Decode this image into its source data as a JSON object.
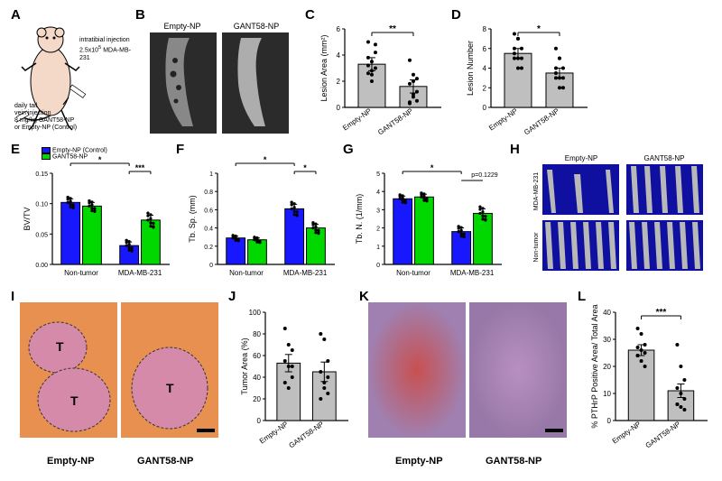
{
  "panels": {
    "A": {
      "label": "A",
      "injection_text": "intratibial injection\n2.5x10⁵ MDA-MB-231",
      "tail_text": "daily tail\nvein injection\n8 mg/kg GANT58-NP\nor Empty-NP (Control)"
    },
    "B": {
      "label": "B",
      "left": "Empty-NP",
      "right": "GANT58-NP"
    },
    "C": {
      "label": "C",
      "ylabel": "Lesion Area (mm²)",
      "ylim": [
        0,
        6
      ],
      "ytick": [
        0,
        2,
        4,
        6
      ],
      "bars": [
        {
          "x": "Empty-NP",
          "val": 3.3,
          "err": 0.5,
          "color": "#bfbfbf"
        },
        {
          "x": "GANT58-NP",
          "val": 1.6,
          "err": 0.5,
          "color": "#bfbfbf"
        }
      ],
      "sig": "**",
      "points1": [
        5.0,
        3.5,
        4.8,
        3.2,
        2.8,
        3.0,
        2.6,
        2.0,
        4.2,
        3.8,
        2.5
      ],
      "points2": [
        3.6,
        2.5,
        0.5,
        0.4,
        0.8,
        1.2,
        1.8,
        2.0,
        2.2,
        0.3,
        1.0
      ]
    },
    "D": {
      "label": "D",
      "ylabel": "Lesion Number",
      "ylim": [
        0,
        8
      ],
      "ytick": [
        0,
        2,
        4,
        6,
        8
      ],
      "bars": [
        {
          "x": "Empty-NP",
          "val": 5.5,
          "err": 0.5,
          "color": "#bfbfbf"
        },
        {
          "x": "GANT58-NP",
          "val": 3.5,
          "err": 0.5,
          "color": "#bfbfbf"
        }
      ],
      "sig": "*",
      "points1": [
        7.5,
        7.0,
        6.0,
        6.0,
        5.0,
        5.0,
        5.0,
        4.0,
        4.0,
        5.5,
        7.0
      ],
      "points2": [
        6.0,
        5.0,
        4.0,
        4.0,
        3.0,
        3.0,
        3.0,
        2.0,
        2.0,
        3.5,
        5.0
      ]
    },
    "E": {
      "label": "E",
      "ylabel": "BV/TV",
      "ylim": [
        0,
        0.15
      ],
      "ytick": [
        0.0,
        0.05,
        0.1,
        0.15
      ],
      "groups": [
        "Non-tumor",
        "MDA-MB-231"
      ],
      "series": [
        {
          "name": "Empty-NP (Control)",
          "color": "#1818ff"
        },
        {
          "name": "GANT58-NP",
          "color": "#00d800"
        }
      ],
      "vals": [
        [
          0.102,
          0.096
        ],
        [
          0.031,
          0.073
        ]
      ],
      "errs": [
        [
          0.006,
          0.006
        ],
        [
          0.006,
          0.008
        ]
      ],
      "sigs": [
        {
          "from": 2,
          "to": 3,
          "label": "***"
        },
        {
          "from": 0,
          "to": 2,
          "label": "*"
        }
      ]
    },
    "F": {
      "label": "F",
      "ylabel": "Tb. Sp. (mm)",
      "ylim": [
        0,
        1.0
      ],
      "ytick": [
        0.0,
        0.2,
        0.4,
        0.6,
        0.8,
        1.0
      ],
      "groups": [
        "Non-tumor",
        "MDA-MB-231"
      ],
      "vals": [
        [
          0.29,
          0.27
        ],
        [
          0.61,
          0.4
        ]
      ],
      "errs": [
        [
          0.02,
          0.02
        ],
        [
          0.05,
          0.04
        ]
      ],
      "sigs": [
        {
          "from": 2,
          "to": 3,
          "label": "*"
        },
        {
          "from": 0,
          "to": 2,
          "label": "*"
        }
      ]
    },
    "G": {
      "label": "G",
      "ylabel": "Tb. N. (1/mm)",
      "ylim": [
        0,
        5
      ],
      "ytick": [
        0,
        1,
        2,
        3,
        4,
        5
      ],
      "groups": [
        "Non-tumor",
        "MDA-MB-231"
      ],
      "vals": [
        [
          3.6,
          3.7
        ],
        [
          1.8,
          2.8
        ]
      ],
      "errs": [
        [
          0.15,
          0.15
        ],
        [
          0.2,
          0.25
        ]
      ],
      "sigs": [
        {
          "from": 0,
          "to": 2,
          "label": "*"
        }
      ],
      "ptext": "p=0.1229"
    },
    "H": {
      "label": "H",
      "cols": [
        "Empty-NP",
        "GANT58-NP"
      ],
      "rows": [
        "MDA-MB-231",
        "Non-tumor"
      ]
    },
    "I": {
      "label": "I",
      "left": "Empty-NP",
      "right": "GANT58-NP",
      "T": "T"
    },
    "J": {
      "label": "J",
      "ylabel": "Tumor Area (%)",
      "ylim": [
        0,
        100
      ],
      "ytick": [
        0,
        20,
        40,
        60,
        80,
        100
      ],
      "bars": [
        {
          "x": "Empty-NP",
          "val": 53,
          "err": 8,
          "color": "#bfbfbf"
        },
        {
          "x": "GANT58-NP",
          "val": 45,
          "err": 9,
          "color": "#bfbfbf"
        }
      ],
      "points1": [
        85,
        70,
        65,
        55,
        50,
        40,
        35,
        30,
        50
      ],
      "points2": [
        80,
        75,
        55,
        45,
        35,
        25,
        20,
        30,
        40
      ]
    },
    "K": {
      "label": "K",
      "left": "Empty-NP",
      "right": "GANT58-NP"
    },
    "L": {
      "label": "L",
      "ylabel": "% PTHrP Positive Area/\nTotal Area",
      "ylim": [
        0,
        40
      ],
      "ytick": [
        0,
        10,
        20,
        30,
        40
      ],
      "bars": [
        {
          "x": "Empty-NP",
          "val": 26,
          "err": 2,
          "color": "#bfbfbf"
        },
        {
          "x": "GANT58-NP",
          "val": 11,
          "err": 2.5,
          "color": "#bfbfbf"
        }
      ],
      "sig": "***",
      "points1": [
        34,
        32,
        28,
        27,
        26,
        25,
        24,
        22,
        20,
        24
      ],
      "points2": [
        28,
        20,
        15,
        12,
        10,
        8,
        6,
        5,
        4,
        6
      ]
    }
  },
  "colors": {
    "blue": "#1818ff",
    "green": "#00d800",
    "gray": "#bfbfbf",
    "mouse": "#f5d9c8",
    "xray_bg": "#3a3a3a",
    "hist_pink": "#d48aa8",
    "hist_orange": "#e89050",
    "micro_bg": "#1010a0",
    "micro_bone": "#b8b8b8"
  }
}
